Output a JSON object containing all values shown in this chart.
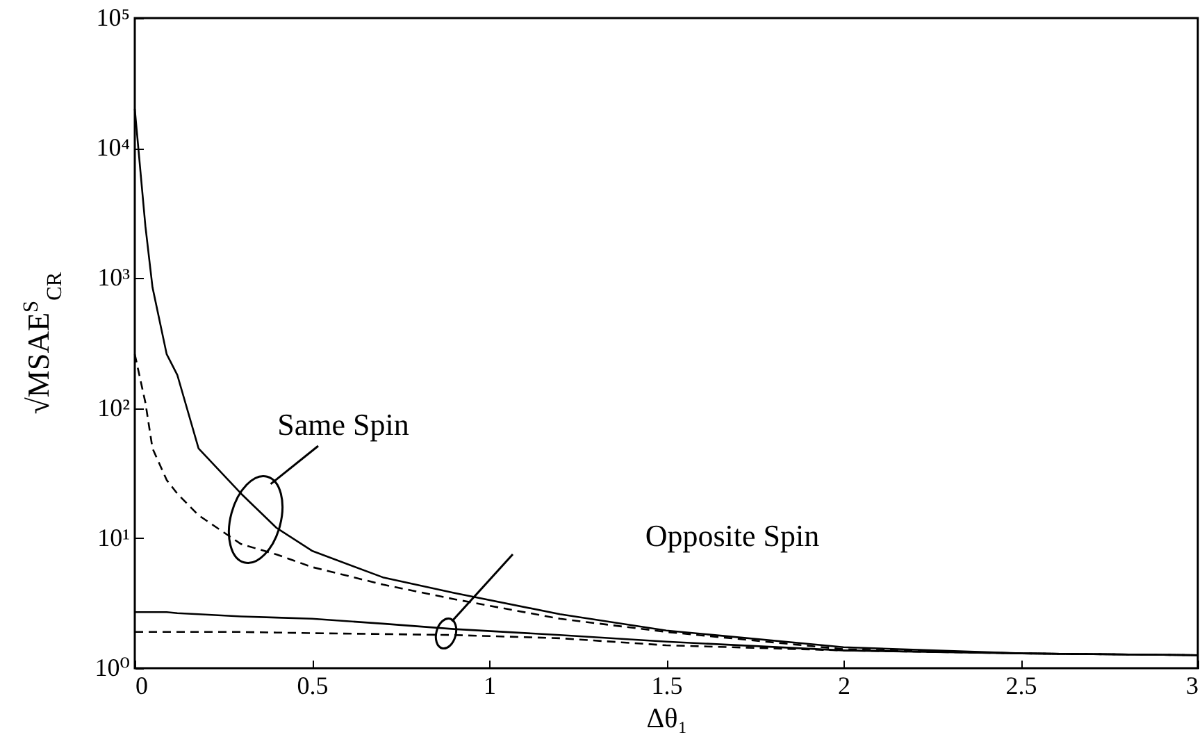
{
  "chart_data": {
    "type": "line",
    "xlabel": "Δθ₁",
    "ylabel": "√MSAE$^{S}$$_{CR}$",
    "x": [
      0,
      0.03,
      0.05,
      0.09,
      0.12,
      0.18,
      0.3,
      0.4,
      0.5,
      0.7,
      0.9,
      1.2,
      1.5,
      2,
      2.5,
      3
    ],
    "series": [
      {
        "color": "#000000",
        "line_style": "solid",
        "values": [
          20000,
          2500,
          850,
          260,
          180,
          49,
          22,
          12,
          8,
          5,
          3.8,
          2.6,
          1.95,
          1.45,
          1.3,
          1.26
        ]
      },
      {
        "color": "#000000",
        "line_style": "dashed",
        "values": [
          260,
          110,
          49,
          28,
          22,
          15,
          9,
          7.5,
          6,
          4.4,
          3.4,
          2.4,
          1.9,
          1.4,
          1.3,
          1.26
        ]
      },
      {
        "color": "#000000",
        "line_style": "solid",
        "values": [
          2.7,
          2.7,
          2.7,
          2.7,
          2.65,
          2.6,
          2.5,
          2.45,
          2.4,
          2.2,
          2.0,
          1.8,
          1.6,
          1.37,
          1.3,
          1.26
        ]
      },
      {
        "color": "#000000",
        "line_style": "dashed",
        "values": [
          1.9,
          1.9,
          1.9,
          1.9,
          1.9,
          1.9,
          1.9,
          1.88,
          1.86,
          1.83,
          1.8,
          1.7,
          1.5,
          1.37,
          1.3,
          1.26
        ]
      }
    ],
    "xlim": [
      0,
      3
    ],
    "xticks": [
      0,
      0.5,
      1,
      1.5,
      2,
      2.5,
      3
    ],
    "log": "y",
    "ylim": [
      1,
      100000
    ],
    "yticks": [
      {
        "value": 1,
        "label": "10⁰"
      },
      {
        "value": 10,
        "label": "10¹"
      },
      {
        "value": 100,
        "label": "10²"
      },
      {
        "value": 1000,
        "label": "10³"
      },
      {
        "value": 10000,
        "label": "10⁴"
      },
      {
        "value": 100000,
        "label": "10⁵"
      }
    ],
    "annotations": [
      "Same Spin",
      "Opposite Spin"
    ]
  }
}
